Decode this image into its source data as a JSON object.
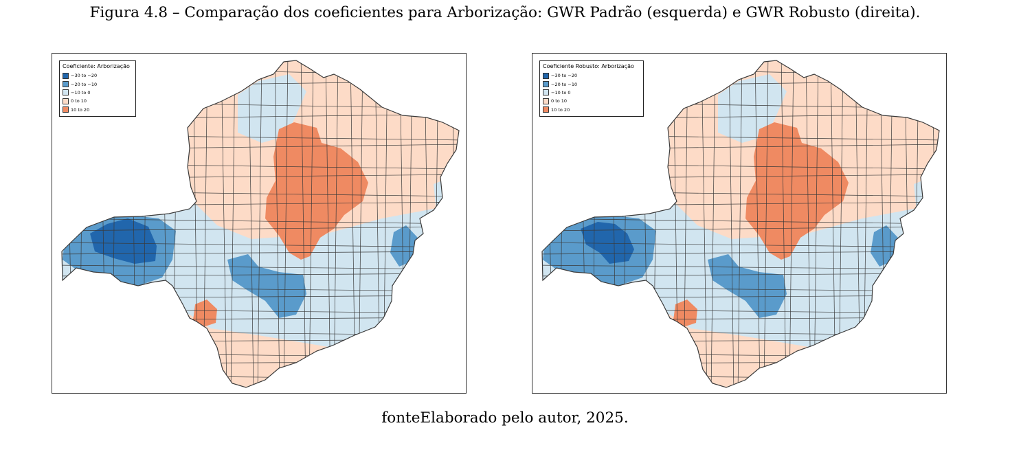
{
  "figure": {
    "caption": "Figura 4.8 – Comparação dos coeficientes para Arborização: GWR Padrão (esquerda) e GWR Robusto (direita).",
    "source": "fonteElaborado pelo autor, 2025."
  },
  "legend_classes": [
    {
      "label": "−30 to −20",
      "color": "#2166ac"
    },
    {
      "label": "−20 to −10",
      "color": "#5a9bcb"
    },
    {
      "label": "−10 to 0",
      "color": "#d1e5f0"
    },
    {
      "label": "0 to 10",
      "color": "#fddbc7"
    },
    {
      "label": "10 to 20",
      "color": "#ef8a62"
    }
  ],
  "maps": [
    {
      "name": "map-gwr-padrao",
      "legend_title": "Coeficiente: Arborização"
    },
    {
      "name": "map-gwr-robusto",
      "legend_title": "Coeficiente Robusto: Arborização"
    }
  ],
  "colors": {
    "border": "#3a3a3a",
    "frame": "#333333"
  }
}
